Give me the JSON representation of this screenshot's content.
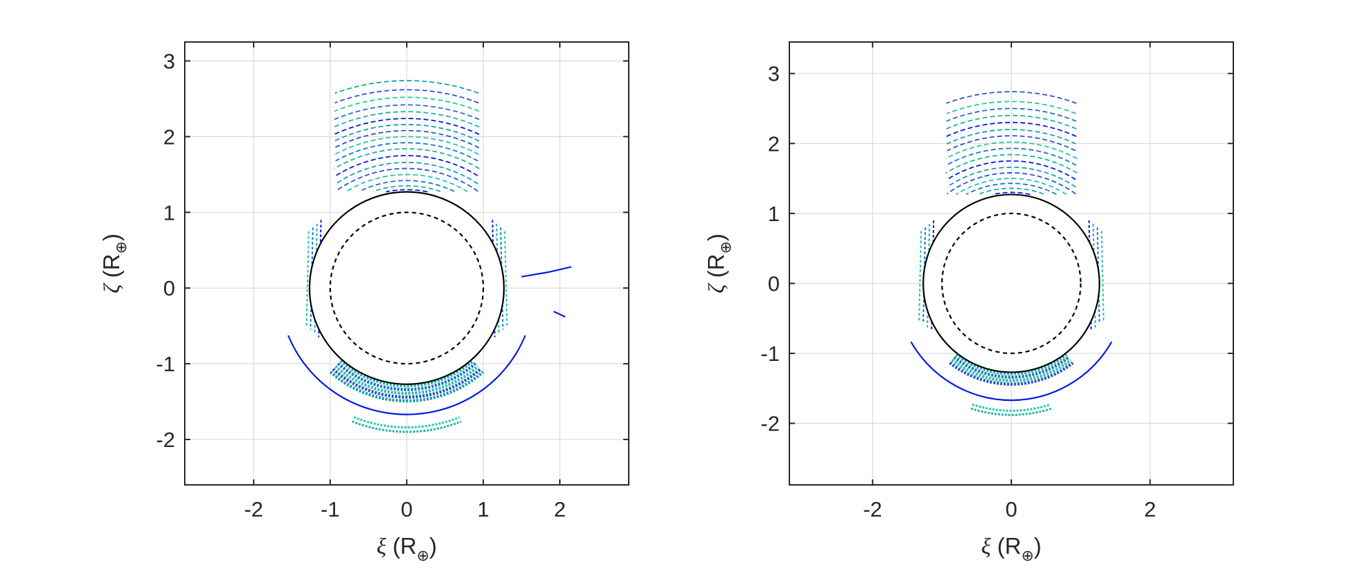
{
  "chart_data": [
    {
      "type": "line",
      "xlabel": {
        "symbol": "ξ",
        "text": " (R",
        "sub": "⊕",
        "close": ")"
      },
      "ylabel": {
        "symbol": "ζ",
        "text": " (R",
        "sub": "⊕",
        "close": ")"
      },
      "xlim": [
        -2.9,
        2.9
      ],
      "ylim": [
        -2.6,
        3.25
      ],
      "xticks": [
        -2,
        -1,
        0,
        1,
        2
      ],
      "xtick_labels": [
        "-2",
        "-1",
        "0",
        "1",
        "2"
      ],
      "yticks": [
        -2,
        -1,
        0,
        1,
        2,
        3
      ],
      "ytick_labels": [
        "-2",
        "-1",
        "0",
        "1",
        "2",
        "3"
      ],
      "grid": true,
      "colors": {
        "solid": "#000000",
        "line_blue": "#0019e6",
        "teal": "#17b3a3",
        "blue_mid": "#1f6fd1"
      },
      "series": [
        {
          "style": "solid-black",
          "shape": "circle",
          "center": [
            0,
            0
          ],
          "radius": 1.27
        },
        {
          "style": "dashed-black",
          "shape": "circle",
          "center": [
            0,
            0
          ],
          "radius": 1.0
        },
        {
          "style": "solid-blue",
          "shape": "arc",
          "center": [
            0,
            0
          ],
          "radius": 1.67,
          "theta_deg": [
            -158,
            -22
          ]
        },
        {
          "style": "solid-blue",
          "shape": "polyline",
          "points": [
            [
              1.5,
              0.15
            ],
            [
              1.85,
              0.21
            ],
            [
              2.15,
              0.28
            ]
          ]
        },
        {
          "style": "solid-blue",
          "shape": "polyline",
          "points": [
            [
              1.92,
              -0.31
            ],
            [
              2.07,
              -0.38
            ]
          ]
        },
        {
          "style": "dashed-family",
          "region": "upper",
          "radii": [
            1.3,
            1.35,
            1.42,
            1.5,
            1.58,
            1.66,
            1.75,
            1.84,
            1.92,
            2.0,
            2.08,
            2.16,
            2.24,
            2.33,
            2.42,
            2.52,
            2.62,
            2.74
          ],
          "xrange": [
            -0.95,
            0.95
          ],
          "ymin": 1.27
        },
        {
          "style": "dashed-family",
          "region": "lower-dense",
          "radii": [
            1.29,
            1.34,
            1.39,
            1.44,
            1.49
          ],
          "theta_deg": [
            -132,
            -48
          ]
        },
        {
          "style": "dashed-family",
          "region": "lower-far",
          "radii": [
            1.84,
            1.9
          ],
          "theta_deg": [
            -112,
            -68
          ]
        },
        {
          "style": "dashed-family",
          "region": "side-lobes",
          "x": [
            1.12,
            1.28
          ],
          "y": [
            -0.65,
            0.9
          ]
        }
      ]
    },
    {
      "type": "line",
      "xlabel": {
        "symbol": "ξ",
        "text": " (R",
        "sub": "⊕",
        "close": ")"
      },
      "ylabel": {
        "symbol": "ζ",
        "text": " (R",
        "sub": "⊕",
        "close": ")"
      },
      "xlim": [
        -3.2,
        3.2
      ],
      "ylim": [
        -2.88,
        3.45
      ],
      "xticks": [
        -2,
        0,
        2
      ],
      "xtick_labels": [
        "-2",
        "0",
        "2"
      ],
      "yticks": [
        -2,
        -1,
        0,
        1,
        2,
        3
      ],
      "ytick_labels": [
        "-2",
        "-1",
        "0",
        "1",
        "2",
        "3"
      ],
      "grid": true,
      "colors": {
        "solid": "#000000",
        "line_blue": "#0019e6",
        "teal": "#17b3a3",
        "blue_mid": "#1f6fd1"
      },
      "series": [
        {
          "style": "solid-black",
          "shape": "circle",
          "center": [
            0,
            0
          ],
          "radius": 1.27
        },
        {
          "style": "dashed-black",
          "shape": "circle",
          "center": [
            0,
            0
          ],
          "radius": 1.0
        },
        {
          "style": "solid-blue",
          "shape": "arc",
          "center": [
            0,
            0
          ],
          "radius": 1.67,
          "theta_deg": [
            -150,
            -30
          ]
        },
        {
          "style": "dashed-family",
          "region": "upper",
          "radii": [
            1.3,
            1.36,
            1.43,
            1.5,
            1.58,
            1.66,
            1.75,
            1.84,
            1.93,
            2.02,
            2.11,
            2.2,
            2.3,
            2.4,
            2.5,
            2.6,
            2.74
          ],
          "xrange": [
            -0.95,
            0.95
          ],
          "ymin": 1.27
        },
        {
          "style": "dashed-family",
          "region": "lower-dense",
          "radii": [
            1.29,
            1.34,
            1.39,
            1.44
          ],
          "theta_deg": [
            -128,
            -52
          ]
        },
        {
          "style": "dashed-family",
          "region": "lower-far",
          "radii": [
            1.82,
            1.88
          ],
          "theta_deg": [
            -108,
            -72
          ]
        },
        {
          "style": "dashed-family",
          "region": "side-lobes",
          "x": [
            1.12,
            1.3
          ],
          "y": [
            -0.68,
            0.9
          ]
        }
      ]
    }
  ]
}
